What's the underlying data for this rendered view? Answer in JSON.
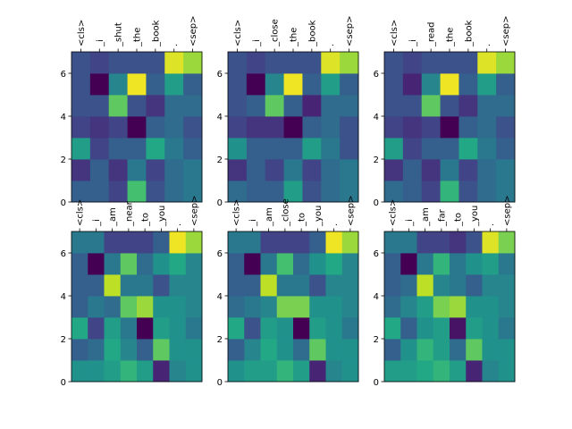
{
  "colors": {
    "frame": "#000000",
    "background": "#ffffff"
  },
  "colormap": "viridis",
  "chart_data": [
    {
      "type": "heatmap",
      "xticklabels": [
        "<cls>",
        "_i",
        "_shut",
        "_the",
        "_book",
        ".",
        "<sep>"
      ],
      "ylim": [
        0,
        7
      ],
      "yticks": [
        "0",
        "2",
        "4",
        "6"
      ],
      "values": [
        [
          0.3,
          0.3,
          0.2,
          0.7,
          0.25,
          0.35,
          0.4
        ],
        [
          0.15,
          0.3,
          0.15,
          0.4,
          0.2,
          0.35,
          0.4
        ],
        [
          0.55,
          0.2,
          0.3,
          0.3,
          0.6,
          0.4,
          0.3
        ],
        [
          0.2,
          0.15,
          0.2,
          0.0,
          0.3,
          0.35,
          0.25
        ],
        [
          0.25,
          0.25,
          0.75,
          0.25,
          0.15,
          0.35,
          0.35
        ],
        [
          0.25,
          0.0,
          0.45,
          0.98,
          0.3,
          0.55,
          0.3
        ],
        [
          0.25,
          0.2,
          0.25,
          0.25,
          0.25,
          0.95,
          0.85
        ]
      ]
    },
    {
      "type": "heatmap",
      "xticklabels": [
        "<cls>",
        "_i",
        "_close",
        "_the",
        "_book",
        ".",
        "<sep>"
      ],
      "ylim": [
        0,
        7
      ],
      "yticks": [
        "0",
        "2",
        "4",
        "6"
      ],
      "values": [
        [
          0.35,
          0.3,
          0.3,
          0.55,
          0.25,
          0.35,
          0.4
        ],
        [
          0.15,
          0.3,
          0.2,
          0.4,
          0.2,
          0.35,
          0.4
        ],
        [
          0.5,
          0.3,
          0.3,
          0.3,
          0.55,
          0.4,
          0.25
        ],
        [
          0.2,
          0.15,
          0.15,
          0.0,
          0.3,
          0.35,
          0.25
        ],
        [
          0.25,
          0.3,
          0.75,
          0.3,
          0.1,
          0.35,
          0.35
        ],
        [
          0.25,
          0.0,
          0.45,
          0.98,
          0.3,
          0.55,
          0.3
        ],
        [
          0.25,
          0.2,
          0.25,
          0.25,
          0.25,
          0.95,
          0.85
        ]
      ]
    },
    {
      "type": "heatmap",
      "xticklabels": [
        "<cls>",
        "_i",
        "_read",
        "_the",
        "_book",
        ".",
        "<sep>"
      ],
      "ylim": [
        0,
        7
      ],
      "yticks": [
        "0",
        "2",
        "4",
        "6"
      ],
      "values": [
        [
          0.35,
          0.3,
          0.2,
          0.65,
          0.25,
          0.35,
          0.4
        ],
        [
          0.15,
          0.3,
          0.15,
          0.4,
          0.2,
          0.35,
          0.4
        ],
        [
          0.55,
          0.2,
          0.3,
          0.3,
          0.6,
          0.4,
          0.3
        ],
        [
          0.2,
          0.15,
          0.2,
          0.0,
          0.3,
          0.35,
          0.25
        ],
        [
          0.25,
          0.25,
          0.75,
          0.25,
          0.15,
          0.35,
          0.35
        ],
        [
          0.25,
          0.1,
          0.45,
          0.98,
          0.3,
          0.55,
          0.3
        ],
        [
          0.25,
          0.2,
          0.25,
          0.25,
          0.25,
          0.95,
          0.85
        ]
      ]
    },
    {
      "type": "heatmap",
      "xticklabels": [
        "<cls>",
        "_i",
        "_am",
        "_near",
        "_to",
        "_you",
        ".",
        "<sep>"
      ],
      "ylim": [
        0,
        7
      ],
      "yticks": [
        "0",
        "2",
        "4",
        "6"
      ],
      "values": [
        [
          0.5,
          0.5,
          0.55,
          0.65,
          0.55,
          0.1,
          0.45,
          0.5
        ],
        [
          0.3,
          0.35,
          0.6,
          0.45,
          0.3,
          0.75,
          0.5,
          0.5
        ],
        [
          0.6,
          0.2,
          0.55,
          0.4,
          0.0,
          0.55,
          0.5,
          0.4
        ],
        [
          0.3,
          0.4,
          0.35,
          0.75,
          0.85,
          0.5,
          0.5,
          0.45
        ],
        [
          0.3,
          0.3,
          0.9,
          0.4,
          0.4,
          0.25,
          0.45,
          0.45
        ],
        [
          0.3,
          0.0,
          0.4,
          0.75,
          0.35,
          0.5,
          0.6,
          0.45
        ],
        [
          0.4,
          0.4,
          0.2,
          0.2,
          0.2,
          0.3,
          0.98,
          0.85
        ]
      ]
    },
    {
      "type": "heatmap",
      "xticklabels": [
        "<cls>",
        "_i",
        "_am",
        "_close",
        "_to",
        "_you",
        ".",
        "<sep>"
      ],
      "ylim": [
        0,
        7
      ],
      "yticks": [
        "0",
        "2",
        "4",
        "6"
      ],
      "values": [
        [
          0.5,
          0.55,
          0.55,
          0.65,
          0.55,
          0.1,
          0.45,
          0.5
        ],
        [
          0.3,
          0.45,
          0.6,
          0.5,
          0.35,
          0.75,
          0.5,
          0.5
        ],
        [
          0.6,
          0.25,
          0.55,
          0.5,
          0.0,
          0.55,
          0.5,
          0.4
        ],
        [
          0.35,
          0.4,
          0.45,
          0.8,
          0.8,
          0.5,
          0.5,
          0.45
        ],
        [
          0.3,
          0.3,
          0.9,
          0.4,
          0.4,
          0.25,
          0.45,
          0.45
        ],
        [
          0.3,
          0.0,
          0.4,
          0.7,
          0.35,
          0.5,
          0.6,
          0.45
        ],
        [
          0.4,
          0.4,
          0.2,
          0.2,
          0.2,
          0.3,
          0.98,
          0.85
        ]
      ]
    },
    {
      "type": "heatmap",
      "xticklabels": [
        "<cls>",
        "_i",
        "_am",
        "_far",
        "_to",
        "_you",
        ".",
        "<sep>"
      ],
      "ylim": [
        0,
        7
      ],
      "yticks": [
        "0",
        "2",
        "4",
        "6"
      ],
      "values": [
        [
          0.55,
          0.55,
          0.6,
          0.65,
          0.55,
          0.1,
          0.45,
          0.5
        ],
        [
          0.3,
          0.5,
          0.65,
          0.55,
          0.35,
          0.75,
          0.5,
          0.5
        ],
        [
          0.6,
          0.3,
          0.5,
          0.55,
          0.05,
          0.55,
          0.5,
          0.4
        ],
        [
          0.35,
          0.45,
          0.55,
          0.8,
          0.85,
          0.5,
          0.5,
          0.45
        ],
        [
          0.3,
          0.35,
          0.9,
          0.45,
          0.4,
          0.3,
          0.45,
          0.45
        ],
        [
          0.3,
          0.0,
          0.4,
          0.65,
          0.4,
          0.5,
          0.55,
          0.4
        ],
        [
          0.4,
          0.4,
          0.2,
          0.2,
          0.15,
          0.25,
          0.95,
          0.8
        ]
      ]
    }
  ]
}
